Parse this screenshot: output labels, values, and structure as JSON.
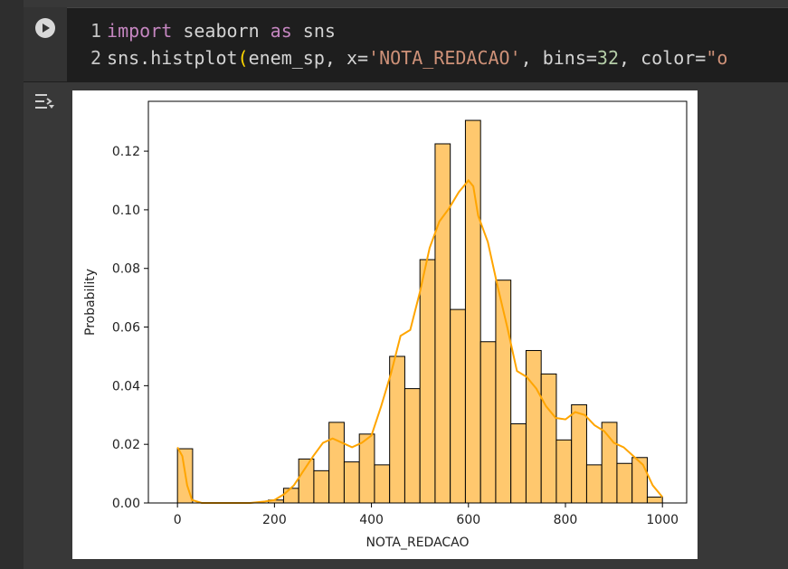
{
  "code": {
    "run_icon": "play-icon",
    "lines": [
      {
        "number": "1",
        "text_parts": [
          {
            "t": "import",
            "c": "kw"
          },
          {
            "t": " seaborn ",
            "c": ""
          },
          {
            "t": "as",
            "c": "kw"
          },
          {
            "t": " sns",
            "c": ""
          }
        ]
      },
      {
        "number": "2",
        "text_parts": [
          {
            "t": "sns.histplot",
            "c": ""
          },
          {
            "t": "(",
            "c": "paren"
          },
          {
            "t": "enem_sp, x=",
            "c": ""
          },
          {
            "t": "'NOTA_REDACAO'",
            "c": "str"
          },
          {
            "t": ", bins=",
            "c": ""
          },
          {
            "t": "32",
            "c": "num"
          },
          {
            "t": ", color=",
            "c": ""
          },
          {
            "t": "\"o",
            "c": "str"
          }
        ]
      }
    ]
  },
  "output": {
    "icon": "output-toggle-icon"
  },
  "chart_data": {
    "type": "bar",
    "xlabel": "NOTA_REDACAO",
    "ylabel": "Probability",
    "xlim": [
      -60,
      1050
    ],
    "ylim": [
      0,
      0.137
    ],
    "xticks": [
      "0",
      "200",
      "400",
      "600",
      "800",
      "1000"
    ],
    "yticks": [
      "0.00",
      "0.02",
      "0.04",
      "0.06",
      "0.08",
      "0.10",
      "0.12"
    ],
    "bar_color": "#ffc86e",
    "kde_color": "#ffa500",
    "bins": [
      {
        "x0": 0,
        "x1": 31.25,
        "value": 0.0185
      },
      {
        "x0": 31.25,
        "x1": 62.5,
        "value": 0
      },
      {
        "x0": 62.5,
        "x1": 93.75,
        "value": 0
      },
      {
        "x0": 93.75,
        "x1": 125,
        "value": 0
      },
      {
        "x0": 125,
        "x1": 156.25,
        "value": 0
      },
      {
        "x0": 156.25,
        "x1": 187.5,
        "value": 0
      },
      {
        "x0": 187.5,
        "x1": 218.75,
        "value": 0.001
      },
      {
        "x0": 218.75,
        "x1": 250,
        "value": 0.005
      },
      {
        "x0": 250,
        "x1": 281.25,
        "value": 0.015
      },
      {
        "x0": 281.25,
        "x1": 312.5,
        "value": 0.011
      },
      {
        "x0": 312.5,
        "x1": 343.75,
        "value": 0.0275
      },
      {
        "x0": 343.75,
        "x1": 375,
        "value": 0.014
      },
      {
        "x0": 375,
        "x1": 406.25,
        "value": 0.0235
      },
      {
        "x0": 406.25,
        "x1": 437.5,
        "value": 0.013
      },
      {
        "x0": 437.5,
        "x1": 468.75,
        "value": 0.05
      },
      {
        "x0": 468.75,
        "x1": 500,
        "value": 0.039
      },
      {
        "x0": 500,
        "x1": 531.25,
        "value": 0.083
      },
      {
        "x0": 531.25,
        "x1": 562.5,
        "value": 0.1225
      },
      {
        "x0": 562.5,
        "x1": 593.75,
        "value": 0.066
      },
      {
        "x0": 593.75,
        "x1": 625,
        "value": 0.1305
      },
      {
        "x0": 625,
        "x1": 656.25,
        "value": 0.055
      },
      {
        "x0": 656.25,
        "x1": 687.5,
        "value": 0.076
      },
      {
        "x0": 687.5,
        "x1": 718.75,
        "value": 0.027
      },
      {
        "x0": 718.75,
        "x1": 750,
        "value": 0.052
      },
      {
        "x0": 750,
        "x1": 781.25,
        "value": 0.044
      },
      {
        "x0": 781.25,
        "x1": 812.5,
        "value": 0.0215
      },
      {
        "x0": 812.5,
        "x1": 843.75,
        "value": 0.0335
      },
      {
        "x0": 843.75,
        "x1": 875,
        "value": 0.013
      },
      {
        "x0": 875,
        "x1": 906.25,
        "value": 0.0275
      },
      {
        "x0": 906.25,
        "x1": 937.5,
        "value": 0.0135
      },
      {
        "x0": 937.5,
        "x1": 968.75,
        "value": 0.0155
      },
      {
        "x0": 968.75,
        "x1": 1000,
        "value": 0.002
      }
    ],
    "kde": [
      [
        0,
        0.019
      ],
      [
        10,
        0.016
      ],
      [
        20,
        0.006
      ],
      [
        30,
        0.001
      ],
      [
        50,
        0.0
      ],
      [
        100,
        0.0
      ],
      [
        150,
        0.0
      ],
      [
        180,
        0.0005
      ],
      [
        200,
        0.001
      ],
      [
        220,
        0.003
      ],
      [
        240,
        0.006
      ],
      [
        260,
        0.011
      ],
      [
        280,
        0.016
      ],
      [
        300,
        0.0205
      ],
      [
        320,
        0.022
      ],
      [
        340,
        0.0205
      ],
      [
        360,
        0.019
      ],
      [
        380,
        0.0205
      ],
      [
        400,
        0.023
      ],
      [
        420,
        0.033
      ],
      [
        440,
        0.044
      ],
      [
        460,
        0.057
      ],
      [
        480,
        0.059
      ],
      [
        500,
        0.072
      ],
      [
        520,
        0.087
      ],
      [
        540,
        0.096
      ],
      [
        560,
        0.1005
      ],
      [
        580,
        0.106
      ],
      [
        600,
        0.11
      ],
      [
        610,
        0.108
      ],
      [
        620,
        0.098
      ],
      [
        640,
        0.089
      ],
      [
        660,
        0.074
      ],
      [
        680,
        0.06
      ],
      [
        700,
        0.045
      ],
      [
        720,
        0.043
      ],
      [
        740,
        0.039
      ],
      [
        760,
        0.033
      ],
      [
        780,
        0.029
      ],
      [
        800,
        0.0285
      ],
      [
        820,
        0.031
      ],
      [
        840,
        0.03
      ],
      [
        860,
        0.0265
      ],
      [
        880,
        0.0245
      ],
      [
        900,
        0.0205
      ],
      [
        920,
        0.019
      ],
      [
        940,
        0.016
      ],
      [
        960,
        0.013
      ],
      [
        980,
        0.006
      ],
      [
        1000,
        0.002
      ]
    ]
  }
}
